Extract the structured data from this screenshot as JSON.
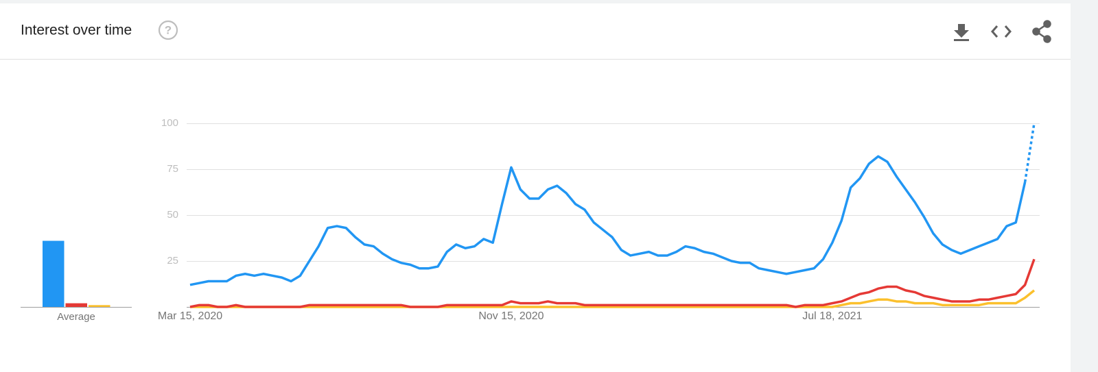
{
  "header": {
    "title": "Interest over time",
    "help": "?"
  },
  "average": {
    "label": "Average",
    "values": [
      36,
      2,
      1
    ],
    "colors": [
      "#2196f3",
      "#e53935",
      "#fbc02d"
    ]
  },
  "chart_data": {
    "type": "line",
    "categories": [
      "Mar 15, 2020",
      null,
      null,
      null,
      null,
      null,
      null,
      null,
      null,
      null,
      null,
      null,
      null,
      null,
      null,
      null,
      null,
      null,
      null,
      null,
      null,
      null,
      null,
      null,
      null,
      null,
      null,
      null,
      null,
      null,
      null,
      null,
      null,
      null,
      null,
      "Nov 15, 2020",
      null,
      null,
      null,
      null,
      null,
      null,
      null,
      null,
      null,
      null,
      null,
      null,
      null,
      null,
      null,
      null,
      null,
      null,
      null,
      null,
      null,
      null,
      null,
      null,
      null,
      null,
      null,
      null,
      null,
      null,
      null,
      null,
      null,
      null,
      "Jul 18, 2021",
      null,
      null,
      null,
      null,
      null,
      null,
      null,
      null,
      null,
      null,
      null,
      null,
      null,
      null,
      null,
      null,
      null,
      null,
      null,
      null,
      null,
      null
    ],
    "series": [
      {
        "color": "#2196f3",
        "partial_last_point": true,
        "values": [
          12,
          13,
          14,
          14,
          14,
          17,
          18,
          17,
          18,
          17,
          16,
          14,
          17,
          25,
          33,
          43,
          44,
          43,
          38,
          34,
          33,
          29,
          26,
          24,
          23,
          21,
          21,
          22,
          30,
          34,
          32,
          33,
          37,
          35,
          56,
          76,
          64,
          59,
          59,
          64,
          66,
          62,
          56,
          53,
          46,
          42,
          38,
          31,
          28,
          29,
          30,
          28,
          28,
          30,
          33,
          32,
          30,
          29,
          27,
          25,
          24,
          24,
          21,
          20,
          19,
          18,
          19,
          20,
          21,
          26,
          35,
          47,
          65,
          70,
          78,
          82,
          79,
          71,
          64,
          57,
          49,
          40,
          34,
          31,
          29,
          31,
          33,
          35,
          37,
          44,
          46,
          68,
          100
        ]
      },
      {
        "color": "#e53935",
        "values": [
          0,
          1,
          1,
          0,
          0,
          1,
          0,
          0,
          0,
          0,
          0,
          0,
          0,
          1,
          1,
          1,
          1,
          1,
          1,
          1,
          1,
          1,
          1,
          1,
          0,
          0,
          0,
          0,
          1,
          1,
          1,
          1,
          1,
          1,
          1,
          3,
          2,
          2,
          2,
          3,
          2,
          2,
          2,
          1,
          1,
          1,
          1,
          1,
          1,
          1,
          1,
          1,
          1,
          1,
          1,
          1,
          1,
          1,
          1,
          1,
          1,
          1,
          1,
          1,
          1,
          1,
          0,
          1,
          1,
          1,
          2,
          3,
          5,
          7,
          8,
          10,
          11,
          11,
          9,
          8,
          6,
          5,
          4,
          3,
          3,
          3,
          4,
          4,
          5,
          6,
          7,
          12,
          26
        ]
      },
      {
        "color": "#fbc02d",
        "values": [
          0,
          0,
          0,
          0,
          0,
          0,
          0,
          0,
          0,
          0,
          0,
          0,
          0,
          0,
          0,
          0,
          0,
          0,
          0,
          0,
          0,
          0,
          0,
          0,
          0,
          0,
          0,
          0,
          0,
          0,
          0,
          0,
          0,
          0,
          0,
          0,
          0,
          0,
          0,
          0,
          0,
          0,
          0,
          0,
          0,
          0,
          0,
          0,
          0,
          0,
          0,
          0,
          0,
          0,
          0,
          0,
          0,
          0,
          0,
          0,
          0,
          0,
          0,
          0,
          0,
          0,
          0,
          0,
          0,
          0,
          0,
          1,
          2,
          2,
          3,
          4,
          4,
          3,
          3,
          2,
          2,
          2,
          1,
          1,
          1,
          1,
          1,
          2,
          2,
          2,
          2,
          5,
          9
        ]
      }
    ],
    "ylim": [
      0,
      100
    ],
    "yticks": [
      25,
      50,
      75,
      100
    ],
    "grid": true
  }
}
